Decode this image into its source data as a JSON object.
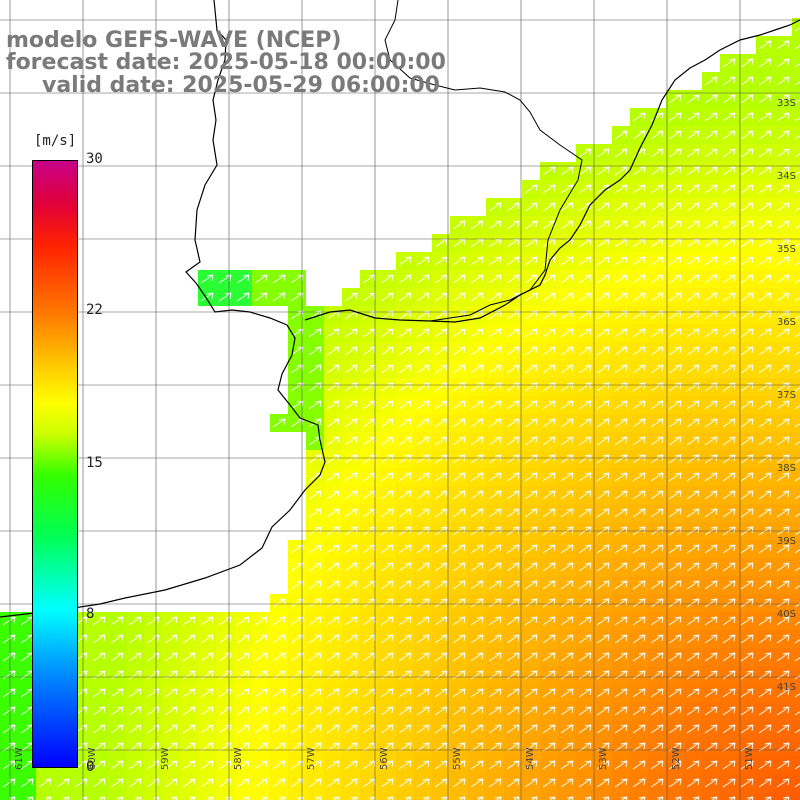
{
  "title": {
    "model": "modelo GEFS-WAVE (NCEP)",
    "forecast": "forecast date: 2025-05-18 00:00:00",
    "valid": "valid date: 2025-05-29 06:00:00"
  },
  "colorbar": {
    "unit": "[m/s]",
    "ticks": [
      "30",
      "22",
      "15",
      "8",
      "0"
    ],
    "colors": [
      "#0000ff",
      "#00ffff",
      "#33ff00",
      "#ffff00",
      "#ff7700",
      "#ff2200",
      "#c80088"
    ]
  },
  "axes": {
    "lat_labels": [
      "33S",
      "34S",
      "35S",
      "36S",
      "37S",
      "38S",
      "39S",
      "40S",
      "41S"
    ],
    "lon_labels": [
      "61W",
      "60W",
      "59W",
      "58W",
      "57W",
      "56W",
      "55W",
      "54W",
      "53W",
      "52W",
      "51W"
    ]
  },
  "map_style": {
    "land_color": "#ffffff",
    "grid_color": "#000000",
    "coast_color": "#000000",
    "arrow_color": "#ffffff"
  }
}
